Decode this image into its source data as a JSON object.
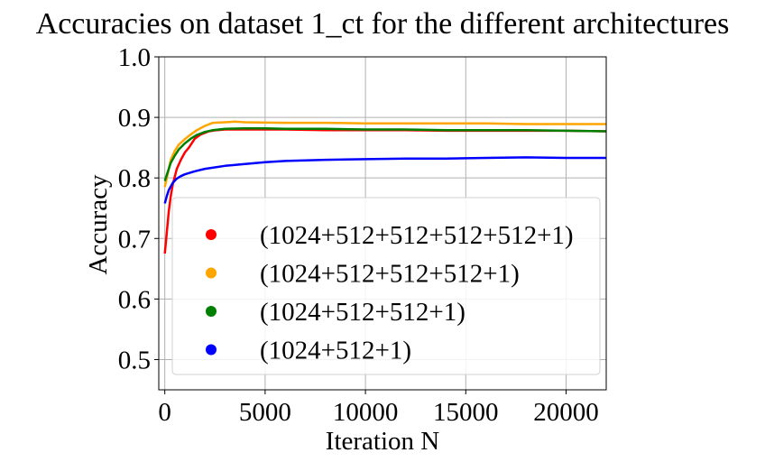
{
  "chart_data": {
    "type": "line",
    "title": "Accuracies on dataset 1_ct for the different architectures",
    "xlabel": "Iteration N",
    "ylabel": "Accuracy",
    "xlim": [
      -300,
      22000
    ],
    "ylim": [
      0.45,
      1.0
    ],
    "xticks": [
      0,
      5000,
      10000,
      15000,
      20000
    ],
    "yticks": [
      0.5,
      0.6,
      0.7,
      0.8,
      0.9,
      1.0
    ],
    "xtick_labels": [
      "0",
      "5000",
      "10000",
      "15000",
      "20000"
    ],
    "ytick_labels": [
      "0.5",
      "0.6",
      "0.7",
      "0.8",
      "0.9",
      "1.0"
    ],
    "grid": true,
    "legend_position": "lower-right",
    "series": [
      {
        "name": "(1024+512+512+512+512+1)",
        "color": "#ff0000",
        "x": [
          0,
          100,
          200,
          300,
          400,
          600,
          800,
          1000,
          1200,
          1500,
          1800,
          2200,
          2600,
          3000,
          4000,
          6000,
          8000,
          10000,
          12000,
          14000,
          16000,
          18000,
          20000,
          22000
        ],
        "y": [
          0.675,
          0.71,
          0.745,
          0.77,
          0.79,
          0.815,
          0.83,
          0.842,
          0.85,
          0.865,
          0.872,
          0.877,
          0.879,
          0.88,
          0.88,
          0.88,
          0.879,
          0.879,
          0.879,
          0.878,
          0.878,
          0.878,
          0.878,
          0.877
        ]
      },
      {
        "name": "(1024+512+512+512+1)",
        "color": "#ffa500",
        "x": [
          0,
          100,
          200,
          300,
          500,
          700,
          1000,
          1300,
          1600,
          2000,
          2400,
          3000,
          3500,
          4000,
          6000,
          8000,
          10000,
          12000,
          14000,
          16000,
          18000,
          20000,
          22000
        ],
        "y": [
          0.785,
          0.8,
          0.815,
          0.83,
          0.845,
          0.855,
          0.864,
          0.872,
          0.879,
          0.886,
          0.891,
          0.892,
          0.893,
          0.892,
          0.891,
          0.891,
          0.89,
          0.89,
          0.89,
          0.89,
          0.889,
          0.889,
          0.889
        ]
      },
      {
        "name": "(1024+512+512+1)",
        "color": "#008000",
        "x": [
          0,
          100,
          200,
          300,
          500,
          700,
          1000,
          1300,
          1600,
          2000,
          2400,
          3000,
          4000,
          5000,
          6000,
          8000,
          10000,
          12000,
          14000,
          16000,
          18000,
          20000,
          22000
        ],
        "y": [
          0.795,
          0.805,
          0.815,
          0.825,
          0.837,
          0.847,
          0.857,
          0.865,
          0.871,
          0.876,
          0.879,
          0.881,
          0.882,
          0.882,
          0.881,
          0.881,
          0.88,
          0.88,
          0.879,
          0.879,
          0.879,
          0.878,
          0.877
        ]
      },
      {
        "name": "(1024+512+1)",
        "color": "#0000ff",
        "x": [
          0,
          100,
          200,
          400,
          600,
          800,
          1000,
          1500,
          2000,
          3000,
          4000,
          5000,
          6000,
          8000,
          10000,
          12000,
          14000,
          16000,
          18000,
          20000,
          22000
        ],
        "y": [
          0.758,
          0.77,
          0.78,
          0.792,
          0.799,
          0.803,
          0.806,
          0.811,
          0.815,
          0.82,
          0.823,
          0.826,
          0.828,
          0.83,
          0.831,
          0.832,
          0.832,
          0.833,
          0.834,
          0.833,
          0.833
        ]
      }
    ]
  }
}
